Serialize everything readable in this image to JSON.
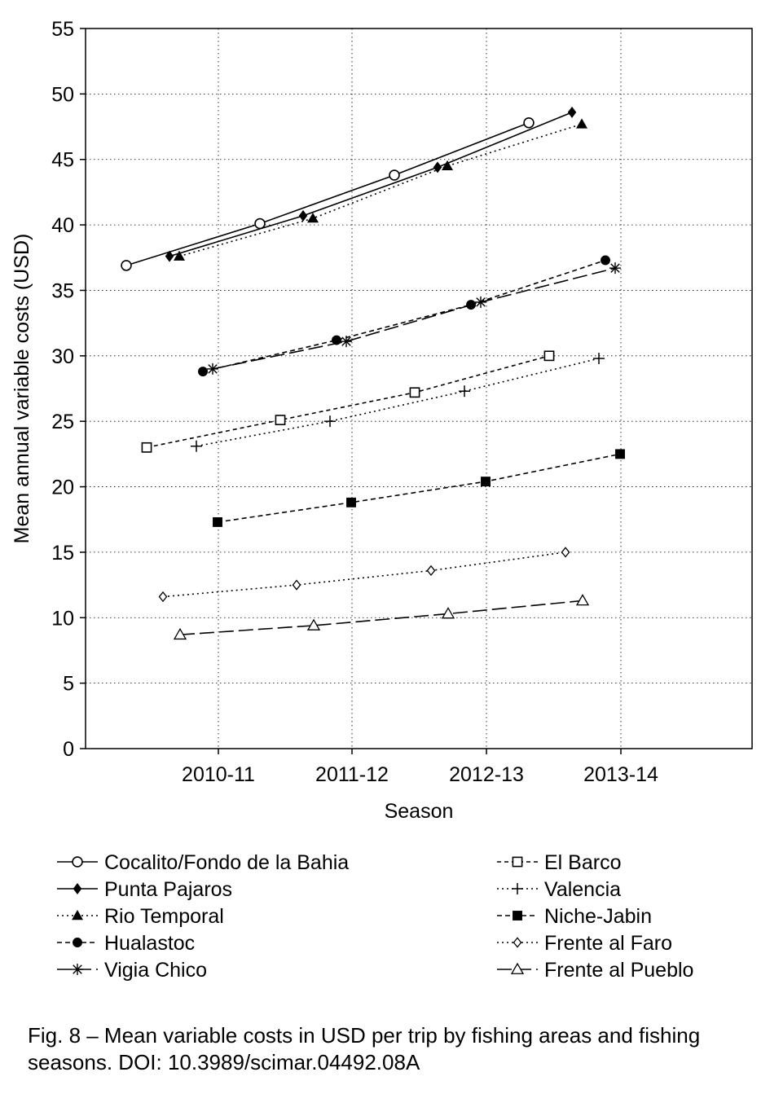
{
  "chart_data": {
    "type": "line",
    "xlabel": "Season",
    "ylabel": "Mean annual variable costs (USD)",
    "categories": [
      "2010-11",
      "2011-12",
      "2012-13",
      "2013-14"
    ],
    "ylim": [
      0,
      55
    ],
    "yticks": [
      0,
      5,
      10,
      15,
      20,
      25,
      30,
      35,
      40,
      45,
      50,
      55
    ],
    "grid": true,
    "legend_position": "bottom",
    "series": [
      {
        "name": "Cocalito/Fondo de la Bahia",
        "values": [
          36.9,
          40.1,
          43.8,
          47.8
        ],
        "marker": "circle-open",
        "dash": "solid"
      },
      {
        "name": "Punta Pajaros",
        "values": [
          37.6,
          40.7,
          44.4,
          48.6
        ],
        "marker": "diamond-filled",
        "dash": "solid"
      },
      {
        "name": "Rio Temporal",
        "values": [
          37.6,
          40.5,
          44.5,
          47.7
        ],
        "marker": "triangle-filled",
        "dash": "dotted"
      },
      {
        "name": "Hualastoc",
        "values": [
          28.8,
          31.2,
          33.9,
          37.3
        ],
        "marker": "circle-filled",
        "dash": "dashed"
      },
      {
        "name": "Vigia Chico",
        "values": [
          29.0,
          31.1,
          34.1,
          36.7
        ],
        "marker": "star",
        "dash": "longdash"
      },
      {
        "name": "El Barco",
        "values": [
          23.0,
          25.1,
          27.2,
          30.0
        ],
        "marker": "square-open",
        "dash": "shortdash"
      },
      {
        "name": "Valencia",
        "values": [
          23.1,
          25.0,
          27.3,
          29.8
        ],
        "marker": "plus",
        "dash": "dotted"
      },
      {
        "name": "Niche-Jabin",
        "values": [
          17.3,
          18.8,
          20.4,
          22.5
        ],
        "marker": "square-filled",
        "dash": "dashed"
      },
      {
        "name": "Frente al Faro",
        "values": [
          11.6,
          12.5,
          13.6,
          15.0
        ],
        "marker": "diamond-open",
        "dash": "dotted"
      },
      {
        "name": "Frente al Pueblo",
        "values": [
          8.7,
          9.4,
          10.3,
          11.3
        ],
        "marker": "triangle-open",
        "dash": "longdash"
      }
    ]
  },
  "caption": "Fig. 8 – Mean variable costs in USD per trip by fishing areas and fishing seasons. DOI: 10.3989/scimar.04492.08A"
}
